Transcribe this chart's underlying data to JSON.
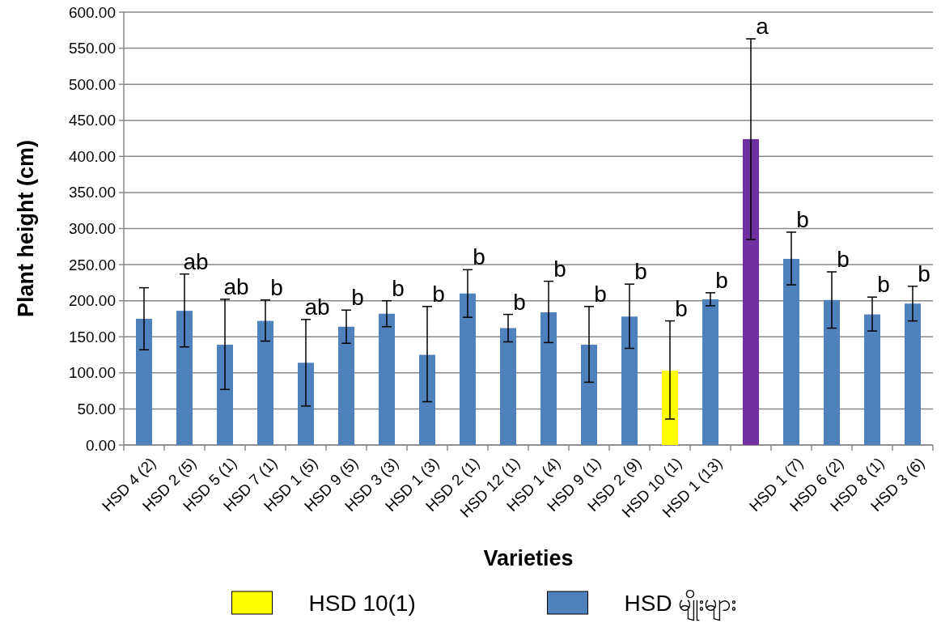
{
  "chart_data": {
    "type": "bar",
    "xlabel": "Varieties",
    "ylabel": "Plant height (cm)",
    "categories": [
      "HSD 4 (2)",
      "HSD 2 (5)",
      "HSD 5 (1)",
      "HSD 7 (1)",
      "HSD 1 (5)",
      "HSD 9 (5)",
      "HSD 3 (3)",
      "HSD 1 (3)",
      "HSD 2 (1)",
      "HSD 12 (1)",
      "HSD 1 (4)",
      "HSD 9 (1)",
      "HSD 2 (9)",
      "HSD 10 (1)",
      "HSD 1 (13)",
      null,
      "HSD 1 (7)",
      "HSD 6 (2)",
      "HSD 8 (1)",
      "HSD 3 (6)"
    ],
    "series": [
      {
        "color": "#7030a0",
        "values": [
          null,
          null,
          null,
          null,
          null,
          null,
          null,
          null,
          null,
          null,
          null,
          null,
          null,
          null,
          null,
          424,
          null,
          null,
          null,
          null
        ],
        "errors": [
          null,
          null,
          null,
          null,
          null,
          null,
          null,
          null,
          null,
          null,
          null,
          null,
          null,
          null,
          null,
          [
            285,
            563
          ],
          null,
          null,
          null,
          null
        ]
      },
      {
        "name": "HSD 10(1)",
        "color": "#ffff00",
        "values": [
          null,
          null,
          null,
          null,
          null,
          null,
          null,
          null,
          null,
          null,
          null,
          null,
          null,
          103,
          null,
          null,
          null,
          null,
          null,
          null
        ],
        "errors": [
          null,
          null,
          null,
          null,
          null,
          null,
          null,
          null,
          null,
          null,
          null,
          null,
          null,
          [
            36,
            172
          ],
          null,
          null,
          null,
          null,
          null,
          null
        ]
      },
      {
        "name": "HSD မျိုးများ",
        "color": "#4f81bd",
        "values": [
          175,
          186,
          139,
          172,
          114,
          164,
          182,
          125,
          210,
          162,
          184,
          139,
          178,
          null,
          202,
          null,
          258,
          201,
          181,
          196
        ],
        "errors": [
          [
            132,
            218
          ],
          [
            136,
            237
          ],
          [
            77,
            202
          ],
          [
            144,
            201
          ],
          [
            54,
            174
          ],
          [
            141,
            187
          ],
          [
            164,
            200
          ],
          [
            60,
            192
          ],
          [
            177,
            243
          ],
          [
            143,
            181
          ],
          [
            142,
            227
          ],
          [
            87,
            192
          ],
          [
            134,
            223
          ],
          null,
          [
            193,
            211
          ],
          null,
          [
            222,
            295
          ],
          [
            162,
            240
          ],
          [
            158,
            205
          ],
          [
            172,
            220
          ]
        ]
      }
    ],
    "ylim": [
      0,
      600
    ],
    "yticks": [
      {
        "value": 0,
        "label": "0.00"
      },
      {
        "value": 50,
        "label": "50.00"
      },
      {
        "value": 100,
        "label": "100.00"
      },
      {
        "value": 150,
        "label": "150.00"
      },
      {
        "value": 200,
        "label": "200.00"
      },
      {
        "value": 250,
        "label": "250.00"
      },
      {
        "value": 300,
        "label": "300.00"
      },
      {
        "value": 350,
        "label": "350.00"
      },
      {
        "value": 400,
        "label": "400.00"
      },
      {
        "value": 450,
        "label": "450.00"
      },
      {
        "value": 500,
        "label": "500.00"
      },
      {
        "value": 550,
        "label": "550.00"
      },
      {
        "value": 600,
        "label": "600.00"
      }
    ],
    "grid": "y",
    "legend": "bottom",
    "annotations": [
      "ab",
      "ab",
      "b",
      "ab",
      "b",
      "b",
      "b",
      "b",
      "b",
      "b",
      "b",
      "b",
      "b",
      "b",
      "a",
      "b",
      "b",
      "b",
      "b"
    ]
  }
}
